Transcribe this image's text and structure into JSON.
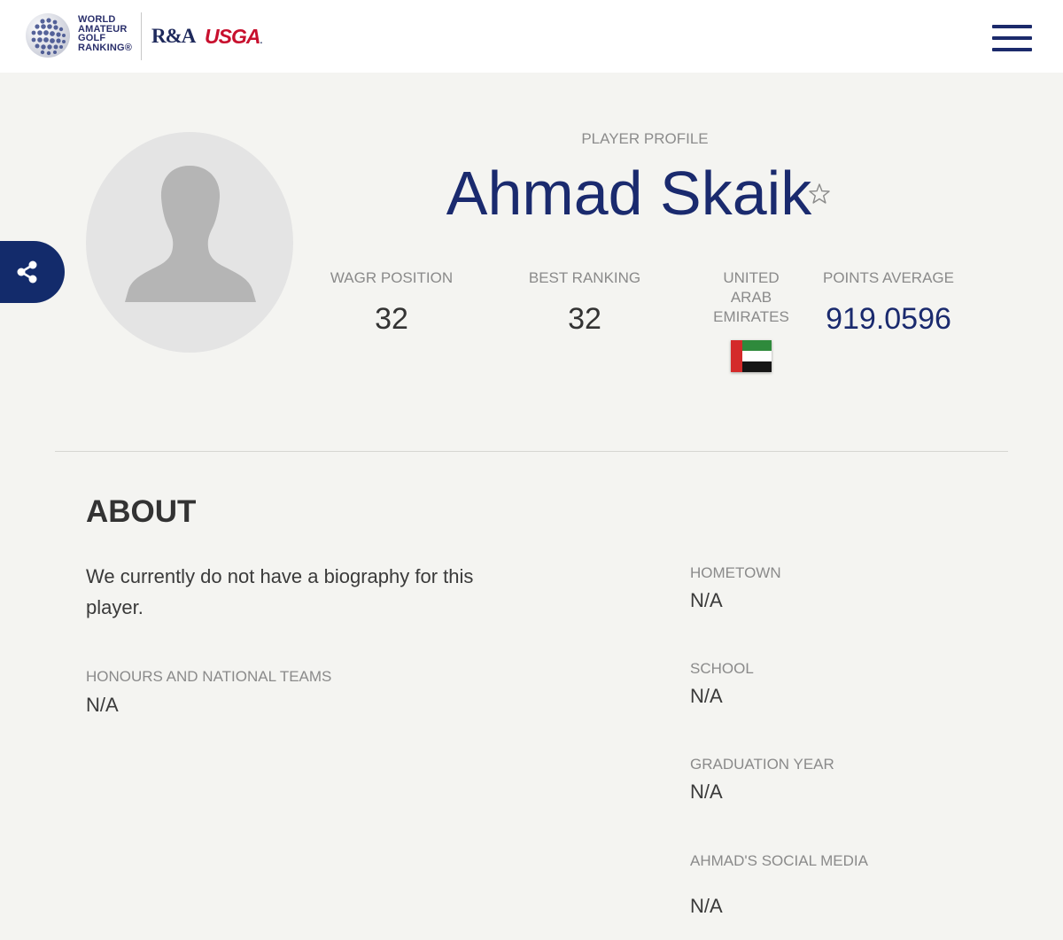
{
  "header": {
    "logo_text_lines": [
      "WORLD",
      "AMATEUR",
      "GOLF",
      "RANKING®"
    ],
    "partner_ra": "R&A",
    "partner_usga": "USGA",
    "menu_icon": "hamburger-menu-icon"
  },
  "share": {
    "icon": "share-icon"
  },
  "profile": {
    "label": "PLAYER PROFILE",
    "name": "Ahmad Skaik",
    "favorite_icon": "star-outline-icon",
    "avatar_icon": "person-silhouette-icon"
  },
  "stats": {
    "wagr_position_label": "WAGR POSITION",
    "wagr_position_value": "32",
    "best_ranking_label": "BEST RANKING",
    "best_ranking_value": "32",
    "country_line1": "UNITED",
    "country_line2": "ARAB",
    "country_line3": "EMIRATES",
    "country_flag": "uae-flag-icon",
    "points_average_label": "POINTS AVERAGE",
    "points_average_value": "919.0596"
  },
  "about": {
    "title": "ABOUT",
    "bio": "We currently do not have a biography for this player.",
    "honours_label": "HONOURS AND NATIONAL TEAMS",
    "honours_value": "N/A",
    "hometown_label": "HOMETOWN",
    "hometown_value": "N/A",
    "school_label": "SCHOOL",
    "school_value": "N/A",
    "graduation_label": "GRADUATION YEAR",
    "graduation_value": "N/A",
    "social_label": "AHMAD'S SOCIAL MEDIA",
    "social_value": "N/A"
  },
  "colors": {
    "navy": "#1a2a6e",
    "usga_red": "#c8102e",
    "background": "#f4f4f1"
  }
}
